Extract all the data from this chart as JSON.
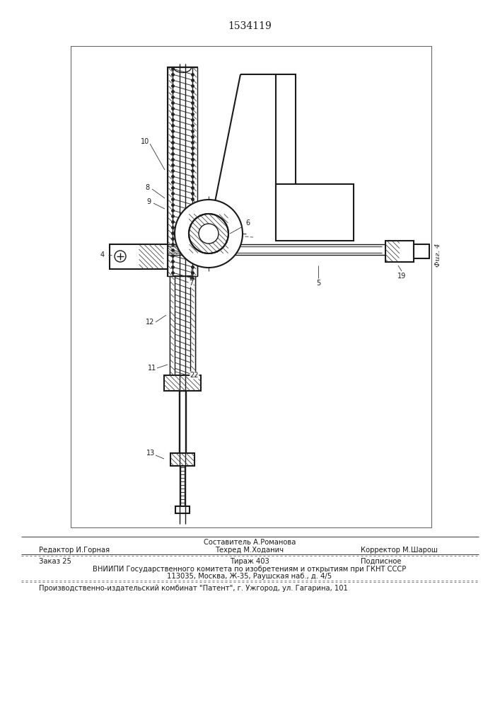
{
  "patent_number": "1534119",
  "fig_label": "Фиг. 4",
  "footer": {
    "line1_center_top": "Составитель А.Романова",
    "line1_left": "Редактор И.Горная",
    "line1_center": "Техред М.Ходанич",
    "line1_right": "Корректор М.Шарош",
    "line2_left": "Заказ 25",
    "line2_center": "Тираж 403",
    "line2_right": "Подписное",
    "line3": "ВНИИПИ Государственного комитета по изобретениям и открытиям при ГКНТ СССР",
    "line4": "113035, Москва, Ж-35, Раушская наб., д. 4/5",
    "line5": "Производственно-издательский комбинат \"Патент\", г. Ужгород, ул. Гагарина, 101"
  },
  "bg_color": "#ffffff",
  "line_color": "#1a1a1a"
}
